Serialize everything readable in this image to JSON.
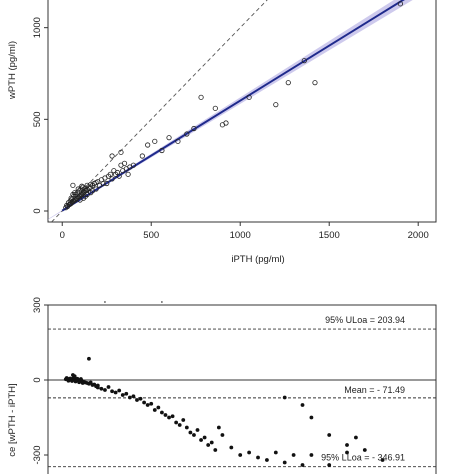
{
  "chart_data": [
    {
      "type": "scatter",
      "xlabel": "iPTH (pg/ml)",
      "ylabel": "wPTH (pg/ml)",
      "xlim": [
        -80,
        2100
      ],
      "ylim": [
        -60,
        1260
      ],
      "xticks": [
        0,
        500,
        1000,
        1500,
        2000
      ],
      "yticks": [
        0,
        500,
        1000
      ],
      "grid": false,
      "identity_line": {
        "style": "dashed",
        "slope": 1,
        "intercept": 0
      },
      "regression_line": {
        "style": "solid",
        "color": "#1f2a8c",
        "band_color": "#b9b4e6",
        "slope": 0.6,
        "intercept": 2
      },
      "points": [
        [
          20,
          18
        ],
        [
          30,
          25
        ],
        [
          40,
          35
        ],
        [
          45,
          38
        ],
        [
          50,
          42
        ],
        [
          55,
          48
        ],
        [
          60,
          52
        ],
        [
          65,
          55
        ],
        [
          70,
          60
        ],
        [
          75,
          62
        ],
        [
          80,
          68
        ],
        [
          85,
          70
        ],
        [
          90,
          75
        ],
        [
          95,
          80
        ],
        [
          100,
          82
        ],
        [
          105,
          88
        ],
        [
          110,
          90
        ],
        [
          115,
          95
        ],
        [
          120,
          100
        ],
        [
          125,
          105
        ],
        [
          130,
          110
        ],
        [
          135,
          112
        ],
        [
          140,
          118
        ],
        [
          150,
          125
        ],
        [
          160,
          130
        ],
        [
          170,
          140
        ],
        [
          180,
          150
        ],
        [
          190,
          155
        ],
        [
          200,
          160
        ],
        [
          25,
          30
        ],
        [
          35,
          45
        ],
        [
          45,
          55
        ],
        [
          55,
          65
        ],
        [
          65,
          80
        ],
        [
          75,
          90
        ],
        [
          85,
          100
        ],
        [
          95,
          110
        ],
        [
          105,
          120
        ],
        [
          115,
          130
        ],
        [
          60,
          140
        ],
        [
          90,
          120
        ],
        [
          110,
          135
        ],
        [
          130,
          125
        ],
        [
          140,
          140
        ],
        [
          160,
          145
        ],
        [
          60,
          90
        ],
        [
          70,
          100
        ],
        [
          50,
          70
        ],
        [
          220,
          170
        ],
        [
          240,
          180
        ],
        [
          260,
          190
        ],
        [
          280,
          175
        ],
        [
          300,
          200
        ],
        [
          320,
          190
        ],
        [
          340,
          220
        ],
        [
          360,
          230
        ],
        [
          380,
          240
        ],
        [
          250,
          150
        ],
        [
          270,
          200
        ],
        [
          290,
          220
        ],
        [
          310,
          210
        ],
        [
          330,
          250
        ],
        [
          350,
          260
        ],
        [
          370,
          200
        ],
        [
          400,
          250
        ],
        [
          280,
          300
        ],
        [
          330,
          320
        ],
        [
          450,
          300
        ],
        [
          520,
          380
        ],
        [
          600,
          400
        ],
        [
          650,
          380
        ],
        [
          700,
          420
        ],
        [
          740,
          450
        ],
        [
          480,
          360
        ],
        [
          560,
          330
        ],
        [
          780,
          620
        ],
        [
          860,
          560
        ],
        [
          900,
          470
        ],
        [
          920,
          480
        ],
        [
          1050,
          620
        ],
        [
          1200,
          580
        ],
        [
          1270,
          700
        ],
        [
          1360,
          820
        ],
        [
          1420,
          700
        ],
        [
          1900,
          1130
        ],
        [
          130,
          80
        ],
        [
          160,
          100
        ],
        [
          190,
          120
        ],
        [
          210,
          140
        ],
        [
          230,
          150
        ],
        [
          100,
          60
        ],
        [
          120,
          70
        ],
        [
          140,
          90
        ],
        [
          170,
          110
        ]
      ]
    },
    {
      "type": "scatter",
      "ylabel": "ce [wPTH - iPTH]",
      "xlim": [
        -80,
        2100
      ],
      "ylim": [
        -360,
        300
      ],
      "yticks": [
        300,
        0,
        -300
      ],
      "grid": false,
      "reference_lines": [
        {
          "label": "95% ULoa = 203.94",
          "value": 203.94,
          "style": "dashed"
        },
        {
          "label": "Mean = - 71.49",
          "value": -71.49,
          "style": "dashed"
        },
        {
          "label": "95% LLoa = - 346.91",
          "value": -346.91,
          "style": "dashed"
        },
        {
          "value": 0,
          "style": "solid"
        }
      ],
      "points": [
        [
          20,
          3
        ],
        [
          30,
          5
        ],
        [
          40,
          2
        ],
        [
          50,
          4
        ],
        [
          60,
          1
        ],
        [
          70,
          3
        ],
        [
          80,
          -2
        ],
        [
          90,
          0
        ],
        [
          100,
          -5
        ],
        [
          110,
          -3
        ],
        [
          120,
          -8
        ],
        [
          130,
          -10
        ],
        [
          140,
          -12
        ],
        [
          150,
          -15
        ],
        [
          160,
          -10
        ],
        [
          170,
          -20
        ],
        [
          180,
          -18
        ],
        [
          190,
          -25
        ],
        [
          200,
          -22
        ],
        [
          25,
          8
        ],
        [
          35,
          -3
        ],
        [
          45,
          6
        ],
        [
          55,
          -4
        ],
        [
          65,
          9
        ],
        [
          75,
          -6
        ],
        [
          85,
          5
        ],
        [
          95,
          -9
        ],
        [
          105,
          4
        ],
        [
          115,
          -12
        ],
        [
          150,
          85
        ],
        [
          60,
          20
        ],
        [
          70,
          15
        ],
        [
          200,
          -30
        ],
        [
          220,
          -35
        ],
        [
          240,
          -40
        ],
        [
          260,
          -28
        ],
        [
          280,
          -45
        ],
        [
          300,
          -50
        ],
        [
          320,
          -42
        ],
        [
          340,
          -60
        ],
        [
          360,
          -55
        ],
        [
          380,
          -70
        ],
        [
          400,
          -65
        ],
        [
          420,
          -80
        ],
        [
          440,
          -75
        ],
        [
          460,
          -90
        ],
        [
          480,
          -100
        ],
        [
          500,
          -95
        ],
        [
          520,
          -120
        ],
        [
          540,
          -110
        ],
        [
          560,
          -130
        ],
        [
          580,
          -140
        ],
        [
          600,
          -150
        ],
        [
          620,
          -145
        ],
        [
          640,
          -170
        ],
        [
          660,
          -180
        ],
        [
          680,
          -160
        ],
        [
          700,
          -190
        ],
        [
          720,
          -210
        ],
        [
          740,
          -220
        ],
        [
          760,
          -200
        ],
        [
          780,
          -240
        ],
        [
          800,
          -230
        ],
        [
          820,
          -260
        ],
        [
          840,
          -250
        ],
        [
          860,
          -280
        ],
        [
          880,
          -190
        ],
        [
          900,
          -220
        ],
        [
          950,
          -270
        ],
        [
          1000,
          -300
        ],
        [
          1050,
          -290
        ],
        [
          1100,
          -310
        ],
        [
          1150,
          -320
        ],
        [
          1200,
          -290
        ],
        [
          1250,
          -330
        ],
        [
          1300,
          -300
        ],
        [
          1350,
          -340
        ],
        [
          1400,
          -300
        ],
        [
          1500,
          -340
        ],
        [
          1600,
          -290
        ],
        [
          1700,
          -280
        ],
        [
          1800,
          -320
        ],
        [
          1250,
          -70
        ],
        [
          1350,
          -100
        ],
        [
          1400,
          -150
        ],
        [
          1500,
          -220
        ],
        [
          1600,
          -260
        ],
        [
          1650,
          -230
        ]
      ]
    }
  ]
}
